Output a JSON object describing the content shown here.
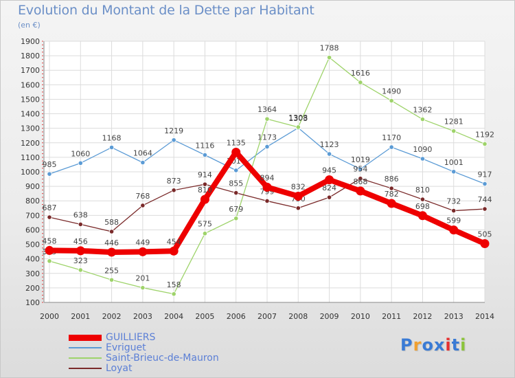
{
  "title": "Evolution du Montant de la Dette par Habitant",
  "unit": "(en €)",
  "brand": {
    "text": "Proxiti",
    "letters": [
      "P",
      "r",
      "o",
      "x",
      "i",
      "t",
      "i"
    ],
    "colors": [
      "#3a7bd5",
      "#f0a030",
      "#3a7bd5",
      "#3a7bd5",
      "#e63030",
      "#3a7bd5",
      "#8cc43c"
    ]
  },
  "legend": [
    {
      "label": "GUILLIERS",
      "color": "#ee0000",
      "width": 9
    },
    {
      "label": "Evriguet",
      "color": "#5b9bd5",
      "width": 1.5
    },
    {
      "label": "Saint-Brieuc-de-Mauron",
      "color": "#9ed36a",
      "width": 1.5
    },
    {
      "label": "Loyat",
      "color": "#7a2a2a",
      "width": 1.5
    }
  ],
  "chart_data": {
    "type": "line",
    "title": "Evolution du Montant de la Dette par Habitant",
    "ylabel": "(en €)",
    "x": [
      "2000",
      "2001",
      "2002",
      "2003",
      "2004",
      "2005",
      "2006",
      "2007",
      "2008",
      "2009",
      "2010",
      "2011",
      "2012",
      "2013",
      "2014"
    ],
    "yticks": [
      100,
      200,
      300,
      400,
      500,
      600,
      700,
      800,
      900,
      1000,
      1100,
      1200,
      1300,
      1400,
      1500,
      1600,
      1700,
      1800,
      1900
    ],
    "ylim": [
      100,
      1900
    ],
    "grid": true,
    "legend_position": "bottom-left",
    "series": [
      {
        "name": "Evriguet",
        "color": "#5b9bd5",
        "values": [
          985,
          1060,
          1168,
          1064,
          1219,
          1116,
          1010,
          1173,
          1303,
          1123,
          1019,
          1170,
          1090,
          1001,
          917
        ]
      },
      {
        "name": "Saint-Brieuc-de-Mauron",
        "color": "#9ed36a",
        "values": [
          385,
          323,
          255,
          201,
          158,
          575,
          679,
          1364,
          1308,
          1788,
          1616,
          1490,
          1362,
          1281,
          1192
        ]
      },
      {
        "name": "Loyat",
        "color": "#7a2a2a",
        "values": [
          687,
          638,
          588,
          768,
          873,
          914,
          855,
          799,
          750,
          824,
          954,
          886,
          810,
          732,
          744
        ]
      },
      {
        "name": "GUILLIERS",
        "color": "#ee0000",
        "values": [
          458,
          456,
          446,
          449,
          454,
          810,
          1135,
          894,
          832,
          945,
          868,
          782,
          698,
          599,
          505
        ]
      }
    ]
  }
}
